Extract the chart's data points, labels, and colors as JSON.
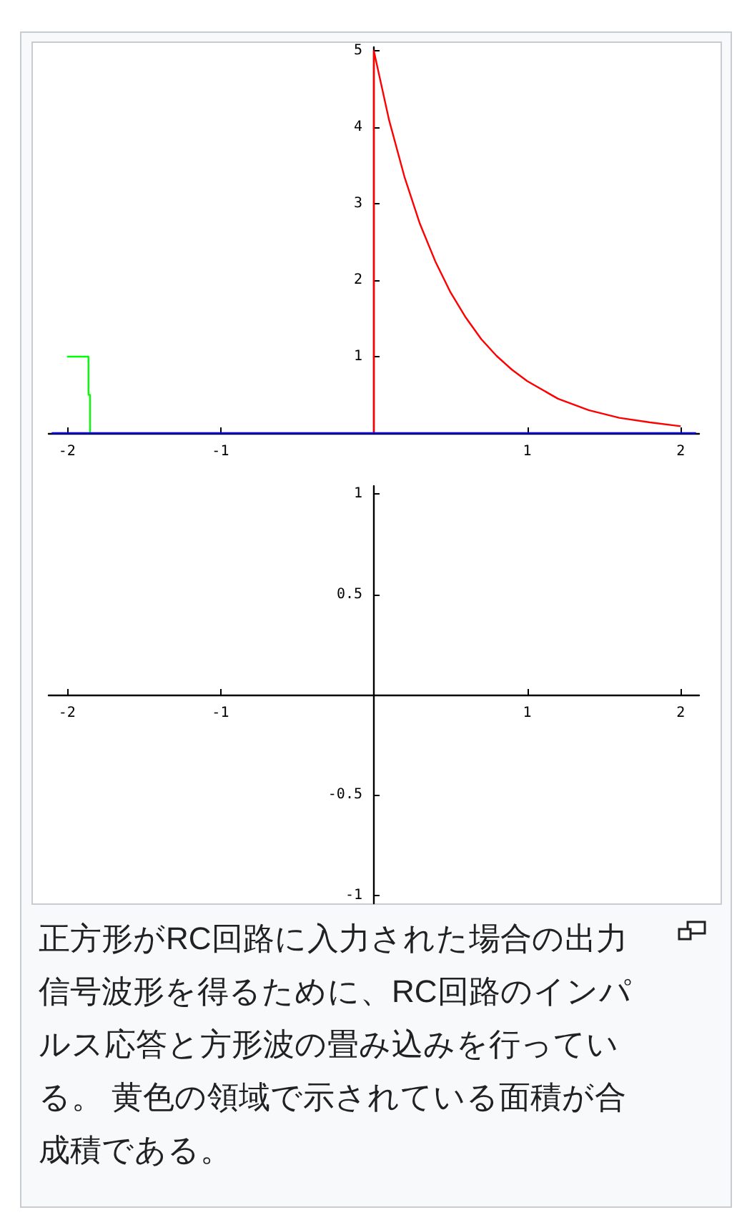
{
  "chart_data": [
    {
      "type": "line",
      "xlim": [
        -2.12,
        2.12
      ],
      "ylim": [
        0,
        5.05
      ],
      "xticks": [
        -2,
        -1,
        1,
        2
      ],
      "yticks": [
        1,
        2,
        3,
        4,
        5
      ],
      "grid": false,
      "marker": "none",
      "series": [
        {
          "color": "#ff0000",
          "x": [
            0,
            0,
            0.1,
            0.2,
            0.3,
            0.4,
            0.5,
            0.6,
            0.7,
            0.8,
            0.9,
            1,
            1.2,
            1.4,
            1.6,
            1.8,
            2
          ],
          "values": [
            0,
            5,
            4.09,
            3.35,
            2.74,
            2.25,
            1.84,
            1.51,
            1.23,
            1.01,
            0.83,
            0.68,
            0.45,
            0.3,
            0.2,
            0.14,
            0.09
          ]
        },
        {
          "color": "#00ff00",
          "x": [
            -2,
            -1.86,
            -1.86,
            -1.85,
            -1.85
          ],
          "values": [
            1,
            1,
            0.5,
            0.5,
            0
          ]
        },
        {
          "color": "#0000ff",
          "x": [
            -2.1,
            2.1
          ],
          "values": [
            0,
            0
          ]
        }
      ]
    },
    {
      "type": "line",
      "xlim": [
        -2.12,
        2.12
      ],
      "ylim": [
        -1.04,
        1.04
      ],
      "xticks": [
        -2,
        -1,
        1,
        2
      ],
      "yticks": [
        -1,
        -0.5,
        0.5,
        1
      ],
      "grid": false,
      "annotations": [
        "正方形がRC回路に入力された場合の出力信号波形を得るために、RC回路のインパルス応答と方形波の畳み込みを行っている。 黄色の領域で示されている面積が合成積である。"
      ]
    }
  ]
}
